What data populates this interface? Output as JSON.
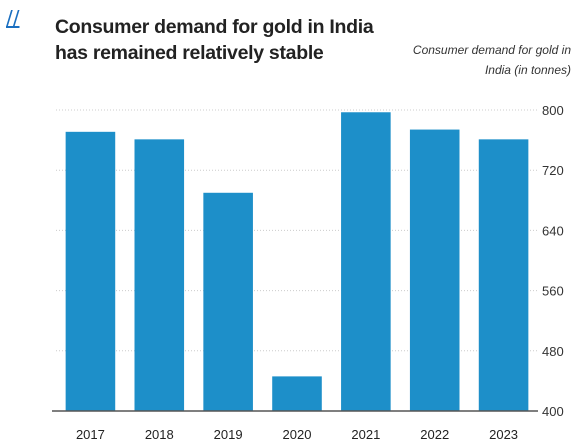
{
  "link": {
    "glyph": "//"
  },
  "chart_data": {
    "type": "bar",
    "title": "Consumer demand for gold in India has remained relatively stable",
    "ylabel": "Consumer demand for gold in India (in tonnes)",
    "categories": [
      "2017",
      "2018",
      "2019",
      "2020",
      "2021",
      "2022",
      "2023"
    ],
    "values": [
      771,
      761,
      690,
      446,
      797,
      774,
      761
    ],
    "ylim": [
      400,
      800
    ],
    "yticks": [
      400,
      480,
      560,
      640,
      720,
      800
    ],
    "grid": true,
    "bar_color": "#1d8fc9",
    "axis_color": "#555555",
    "grid_color": "#cccccc"
  }
}
